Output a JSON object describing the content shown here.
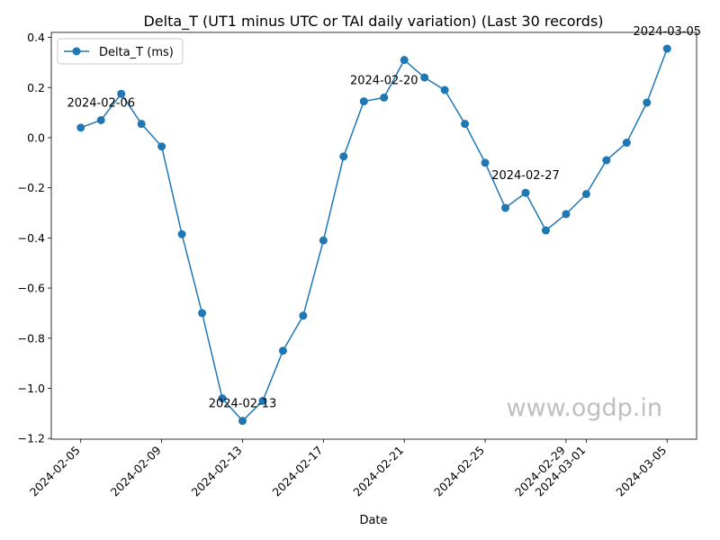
{
  "chart_data": {
    "type": "line",
    "title": "Delta_T (UT1 minus UTC or TAI daily variation) (Last 30 records)",
    "xlabel": "Date",
    "ylabel": "",
    "legend_position": "top-left",
    "grid": false,
    "series": [
      {
        "name": "Delta_T (ms)",
        "color": "#1f77b4",
        "x": [
          "2024-02-05",
          "2024-02-06",
          "2024-02-07",
          "2024-02-08",
          "2024-02-09",
          "2024-02-10",
          "2024-02-11",
          "2024-02-12",
          "2024-02-13",
          "2024-02-14",
          "2024-02-15",
          "2024-02-16",
          "2024-02-17",
          "2024-02-18",
          "2024-02-19",
          "2024-02-20",
          "2024-02-21",
          "2024-02-22",
          "2024-02-23",
          "2024-02-24",
          "2024-02-25",
          "2024-02-26",
          "2024-02-27",
          "2024-02-28",
          "2024-02-29",
          "2024-03-01",
          "2024-03-02",
          "2024-03-03",
          "2024-03-04",
          "2024-03-05"
        ],
        "values": [
          0.04,
          0.07,
          0.175,
          0.055,
          -0.035,
          -0.385,
          -0.7,
          -1.04,
          -1.13,
          -1.05,
          -0.85,
          -0.71,
          -0.41,
          -0.075,
          0.145,
          0.16,
          0.31,
          0.24,
          0.19,
          0.055,
          -0.1,
          -0.28,
          -0.22,
          -0.37,
          -0.305,
          -0.225,
          -0.09,
          -0.02,
          0.14,
          0.355
        ]
      }
    ],
    "annotations": [
      {
        "x": "2024-02-06",
        "text": "2024-02-06"
      },
      {
        "x": "2024-02-13",
        "text": "2024-02-13"
      },
      {
        "x": "2024-02-20",
        "text": "2024-02-20"
      },
      {
        "x": "2024-02-27",
        "text": "2024-02-27"
      },
      {
        "x": "2024-03-05",
        "text": "2024-03-05"
      }
    ],
    "x_ticks": [
      "2024-02-05",
      "2024-02-09",
      "2024-02-13",
      "2024-02-17",
      "2024-02-21",
      "2024-02-25",
      "2024-02-29",
      "2024-03-01",
      "2024-03-05"
    ],
    "y_ticks": [
      -1.2,
      -1.0,
      -0.8,
      -0.6,
      -0.4,
      -0.2,
      0.0,
      0.2,
      0.4
    ],
    "y_tick_labels": [
      "−1.2",
      "−1.0",
      "−0.8",
      "−0.6",
      "−0.4",
      "−0.2",
      "0.0",
      "0.2",
      "0.4"
    ],
    "ylim": [
      -1.203,
      0.42
    ],
    "xlim": [
      "2024-02-03T13:00",
      "2024-03-06T11:00"
    ],
    "watermark": "www.ogdp.in"
  }
}
